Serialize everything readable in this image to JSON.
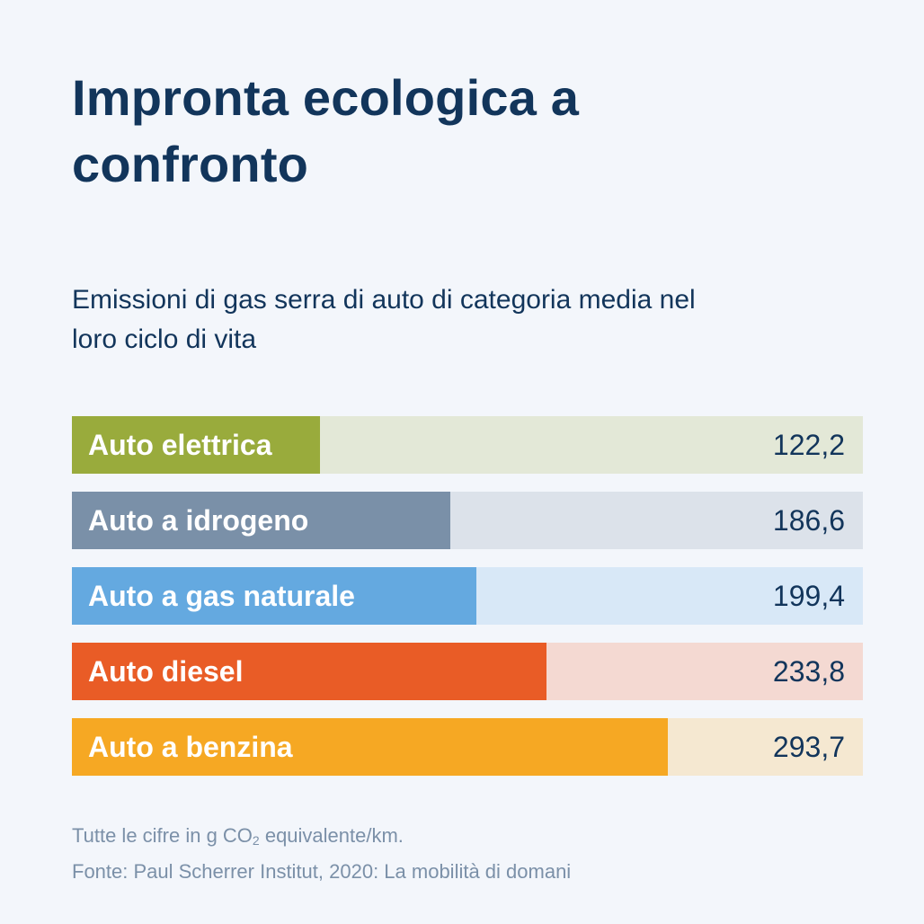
{
  "title": "Impronta ecologica a confronto",
  "subtitle": "Emissioni di gas serra di auto di categoria media nel loro ciclo di vita",
  "footnote": {
    "units_prefix": "Tutte le cifre in g CO",
    "units_subscript": "2",
    "units_suffix": " equivalente/km.",
    "source": "Fonte: Paul Scherrer Institut, 2020: La mobilità di domani"
  },
  "colors": {
    "background": "#f3f6fb",
    "title": "#12355b",
    "note": "#7b90a8"
  },
  "chart_data": {
    "type": "bar",
    "orientation": "horizontal",
    "title": "Impronta ecologica a confronto",
    "subtitle": "Emissioni di gas serra di auto di categoria media nel loro ciclo di vita",
    "unit": "g CO2 equivalente/km",
    "xlim": [
      0,
      390
    ],
    "categories": [
      "Auto elettrica",
      "Auto a idrogeno",
      "Auto a gas naturale",
      "Auto diesel",
      "Auto a benzina"
    ],
    "values": [
      122.2,
      186.6,
      199.4,
      233.8,
      293.7
    ],
    "value_labels": [
      "122,2",
      "186,6",
      "199,4",
      "233,8",
      "293,7"
    ],
    "bar_colors": [
      "#99ab3c",
      "#7a90a8",
      "#64a9e0",
      "#e95c26",
      "#f6a823"
    ],
    "track_colors": [
      "#e3e8d7",
      "#dce2ea",
      "#d8e8f7",
      "#f4d9d2",
      "#f5e8d1"
    ],
    "grid": false,
    "legend": "none"
  }
}
